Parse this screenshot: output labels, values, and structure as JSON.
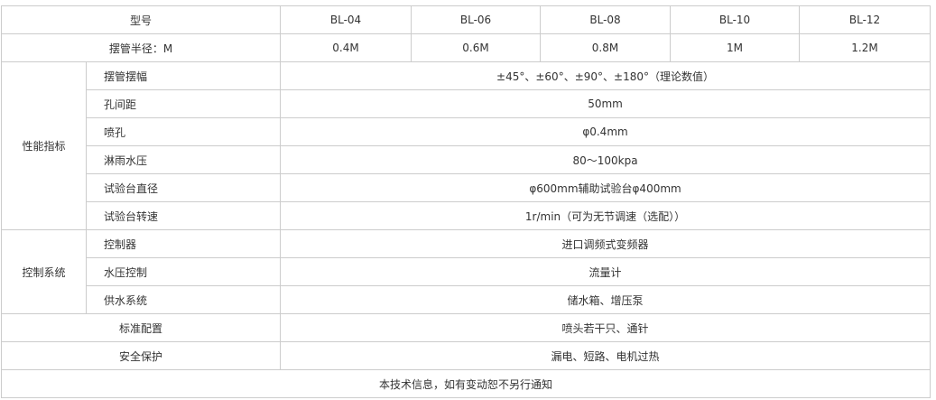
{
  "header": {
    "label": "型号",
    "models": [
      "BL-04",
      "BL-06",
      "BL-08",
      "BL-10",
      "BL-12"
    ]
  },
  "radius": {
    "label": "摆管半径：M",
    "values": [
      "0.4M",
      "0.6M",
      "0.8M",
      "1M",
      "1.2M"
    ]
  },
  "performance": {
    "group": "性能指标",
    "rows": [
      {
        "label": "摆管摆幅",
        "value": "±45°、±60°、±90°、±180°（理论数值）"
      },
      {
        "label": "孔间距",
        "value": "50mm"
      },
      {
        "label": "喷孔",
        "value": "φ0.4mm"
      },
      {
        "label": "淋雨水压",
        "value": "80～100kpa"
      },
      {
        "label": "试验台直径",
        "value": "φ600mm辅助试验台φ400mm"
      },
      {
        "label": "试验台转速",
        "value": "1r/min（可为无节调速（选配））"
      }
    ]
  },
  "control": {
    "group": "控制系统",
    "rows": [
      {
        "label": "控制器",
        "value": "进口调频式变频器"
      },
      {
        "label": "水压控制",
        "value": "流量计"
      },
      {
        "label": "供水系统",
        "value": "储水箱、增压泵"
      }
    ]
  },
  "standard": {
    "label": "标准配置",
    "value": "喷头若干只、通针"
  },
  "safety": {
    "label": "安全保护",
    "value": "漏电、短路、电机过热"
  },
  "footer": "本技术信息，如有变动恕不另行通知"
}
